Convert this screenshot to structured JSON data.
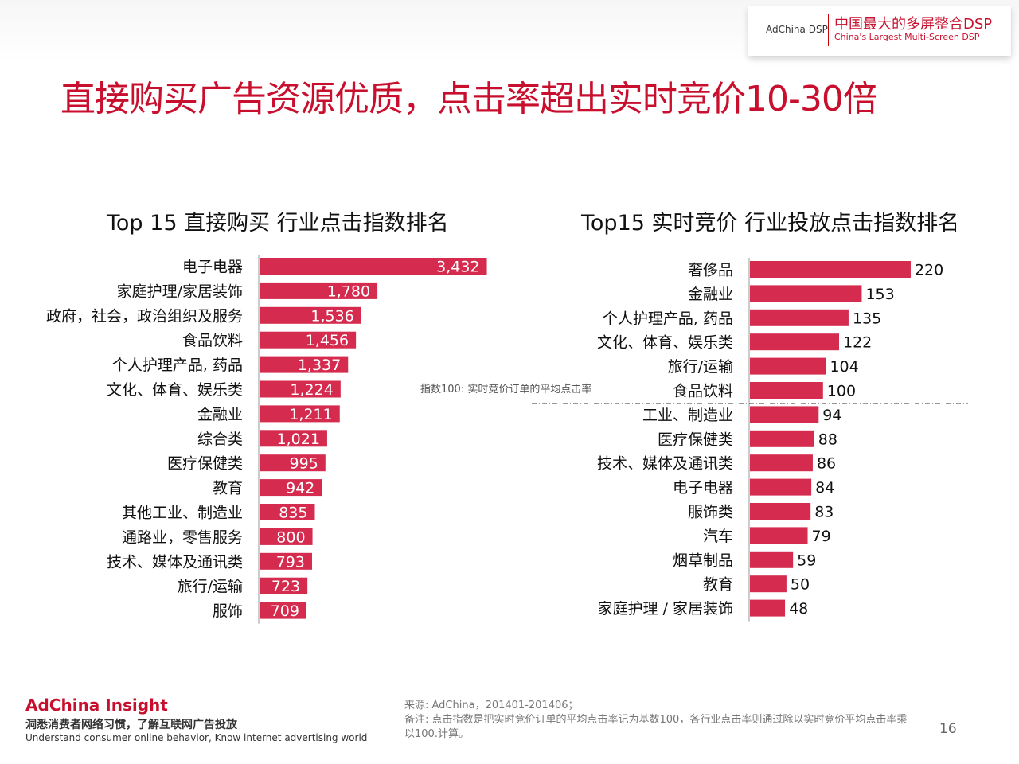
{
  "header": {
    "brand_left": "AdChina DSP",
    "brand_cn": "中国最大的多屏整合DSP",
    "brand_en": "China's Largest Multi-Screen DSP"
  },
  "title": "直接购买广告资源优质，点击率超出实时竞价10-30倍",
  "note_baseline": "指数100: 实时竞价订单的平均点击率",
  "footer": {
    "brand": "AdChina Insight",
    "tagline_cn": "洞悉消费者网络习惯，了解互联网广告投放",
    "tagline_en": "Understand consumer online behavior, Know internet advertising world",
    "source": "来源: AdChina，201401-201406；",
    "note": "备注: 点击指数是把实时竞价订单的平均点击率记为基数100，各行业点击率则通过除以实时竞价平均点击率乘以100.计算。",
    "page_number": "16"
  },
  "colors": {
    "bar": "#d42b4e",
    "title": "#c8102e"
  },
  "chart_data": [
    {
      "type": "bar",
      "orientation": "horizontal",
      "title": "Top 15 直接购买 行业点击指数排名",
      "categories": [
        "电子电器",
        "家庭护理/家居装饰",
        "政府，社会，政治组织及服务",
        "食品饮料",
        "个人护理产品, 药品",
        "文化、体育、娱乐类",
        "金融业",
        "综合类",
        "医疗保健类",
        "教育",
        "其他工业、制造业",
        "通路业，零售服务",
        "技术、媒体及通讯类",
        "旅行/运输",
        "服饰"
      ],
      "values": [
        3432,
        1780,
        1536,
        1456,
        1337,
        1224,
        1211,
        1021,
        995,
        942,
        835,
        800,
        793,
        723,
        709
      ],
      "labels": [
        "3,432",
        "1,780",
        "1,536",
        "1,456",
        "1,337",
        "1,224",
        "1,211",
        "1,021",
        "995",
        "942",
        "835",
        "800",
        "793",
        "723",
        "709"
      ],
      "label_position": "inside-end"
    },
    {
      "type": "bar",
      "orientation": "horizontal",
      "title": "Top15 实时竞价 行业投放点击指数排名",
      "categories": [
        "奢侈品",
        "金融业",
        "个人护理产品, 药品",
        "文化、体育、娱乐类",
        "旅行/运输",
        "食品饮料",
        "工业、制造业",
        "医疗保健类",
        "技术、媒体及通讯类",
        "电子电器",
        "服饰类",
        "汽车",
        "烟草制品",
        "教育",
        "家庭护理 / 家居装饰"
      ],
      "values": [
        220,
        153,
        135,
        122,
        104,
        100,
        94,
        88,
        86,
        84,
        83,
        79,
        59,
        50,
        48
      ],
      "labels": [
        "220",
        "153",
        "135",
        "122",
        "104",
        "100",
        "94",
        "88",
        "86",
        "84",
        "83",
        "79",
        "59",
        "50",
        "48"
      ],
      "label_position": "outside-end",
      "reference_line": {
        "value": 100,
        "label": "指数100: 实时竞价订单的平均点击率"
      }
    }
  ]
}
